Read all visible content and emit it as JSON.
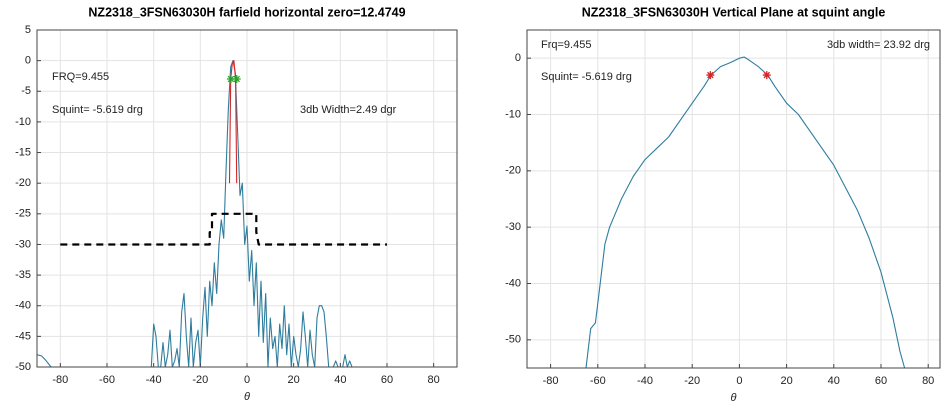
{
  "chart_data": [
    {
      "type": "line",
      "title": "NZ2318_3FSN63030H farfield horizontal zero=12.4749",
      "xlabel": "θ",
      "annotations": [
        "FRQ=9.455",
        "Squint=  -5.619 drg",
        "3db Width=2.49 dgr"
      ],
      "xlim": [
        -90,
        90
      ],
      "ylim": [
        -50,
        5
      ],
      "xticks": [
        -80,
        -60,
        -40,
        -20,
        0,
        20,
        40,
        60,
        80
      ],
      "yticks": [
        5,
        0,
        -5,
        -10,
        -15,
        -20,
        -25,
        -30,
        -35,
        -40,
        -45,
        -50
      ],
      "grid": true,
      "series": [
        {
          "color": "#2e7d9e",
          "x": [
            -90,
            -88,
            -86,
            -84
          ],
          "values": [
            -48,
            -48.2,
            -49,
            -50
          ]
        },
        {
          "color": "#2e7d9e",
          "x": [
            -41,
            -40,
            -39,
            -38,
            -37,
            -36,
            -35,
            -34,
            -33,
            -32,
            -31,
            -30,
            -29,
            -28,
            -27,
            -26,
            -25,
            -24,
            -23,
            -22,
            -21,
            -20,
            -19,
            -18,
            -17,
            -16,
            -15,
            -14,
            -13,
            -12,
            -11,
            -10,
            -9,
            -8,
            -7,
            -6,
            -5,
            -4,
            -3,
            -2,
            -1,
            0,
            1,
            2,
            3,
            4,
            5,
            6,
            7,
            8,
            9,
            10,
            11,
            12,
            13,
            14,
            15,
            16,
            17,
            18,
            19,
            20,
            21,
            22,
            23,
            24,
            25,
            26,
            27,
            28,
            29,
            30,
            31,
            32,
            33,
            34,
            35,
            36,
            37,
            38,
            39,
            40,
            41,
            42,
            43,
            44,
            45,
            46,
            47
          ],
          "values": [
            -50,
            -43,
            -45,
            -50,
            -50,
            -46,
            -50,
            -48,
            -44,
            -50,
            -49,
            -47,
            -50,
            -41,
            -38,
            -45,
            -50,
            -42,
            -50,
            -46,
            -44,
            -50,
            -42,
            -37,
            -45,
            -36,
            -40,
            -33,
            -38,
            -30,
            -26,
            -29,
            -18,
            -8,
            -1,
            0,
            -2,
            -12,
            -22,
            -20,
            -30,
            -27,
            -36,
            -31,
            -40,
            -33,
            -45,
            -36,
            -46,
            -38,
            -50,
            -42,
            -47,
            -45,
            -50,
            -43,
            -47,
            -40,
            -48,
            -43,
            -50,
            -45,
            -48,
            -50,
            -47,
            -41,
            -45,
            -50,
            -44,
            -48,
            -50,
            -42,
            -40,
            -40,
            -41,
            -45,
            -50,
            -50,
            -50,
            -49,
            -50,
            -50,
            -50,
            -48,
            -50,
            -49,
            -50,
            -50,
            -50
          ]
        },
        {
          "color": "#d62728",
          "x": [
            -7.5,
            -7,
            -6.3,
            -5.6,
            -4.9,
            -4.4
          ],
          "values": [
            -20,
            -3,
            -0.5,
            0,
            -3,
            -20
          ]
        },
        {
          "color": "#000000",
          "dash": true,
          "x": [
            -80,
            -17,
            -16,
            -16,
            -15,
            -15,
            4,
            4,
            5,
            60
          ],
          "values": [
            -30,
            -30,
            -30,
            -28,
            -28,
            -25,
            -25,
            -28,
            -30,
            -30
          ]
        },
        {
          "color": "#2ca02c",
          "marker": "star",
          "x": [
            -6.9,
            -4.4
          ],
          "values": [
            -3,
            -3
          ]
        }
      ]
    },
    {
      "type": "line",
      "title": "NZ2318_3FSN63030H  Vertical Plane at squint angle",
      "xlabel": "θ",
      "annotations": [
        "Frq=9.455",
        "Squint=  -5.619 drg",
        "3db width= 23.92 drg"
      ],
      "xlim": [
        -90,
        85
      ],
      "ylim": [
        -55,
        5
      ],
      "xticks": [
        -80,
        -60,
        -40,
        -20,
        0,
        20,
        40,
        60,
        80
      ],
      "yticks": [
        0,
        -10,
        -20,
        -30,
        -40,
        -50
      ],
      "grid": true,
      "series": [
        {
          "color": "#2e7d9e",
          "x": [
            -65,
            -63,
            -61,
            -59,
            -57,
            -55,
            -52,
            -50,
            -45,
            -40,
            -35,
            -30,
            -25,
            -20,
            -15,
            -12,
            -8,
            -4,
            0,
            2,
            4,
            8,
            12,
            15,
            20,
            25,
            30,
            35,
            40,
            45,
            50,
            55,
            60,
            65,
            68,
            70
          ],
          "values": [
            -55,
            -48,
            -47,
            -40,
            -33,
            -30,
            -27,
            -25,
            -21,
            -18,
            -16,
            -14,
            -11,
            -8,
            -5,
            -3,
            -1.5,
            -0.8,
            0,
            0.2,
            -0.3,
            -1.5,
            -3,
            -5,
            -8,
            -10,
            -13,
            -16,
            -19,
            -23,
            -27,
            -32,
            -38,
            -46,
            -52,
            -55
          ]
        },
        {
          "color": "#d62728",
          "marker": "star",
          "x": [
            -12.3,
            11.6
          ],
          "values": [
            -3,
            -3
          ]
        }
      ]
    }
  ]
}
